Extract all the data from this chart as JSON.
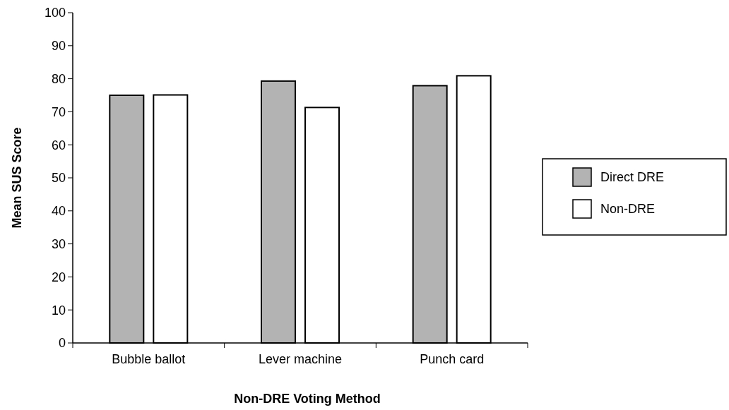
{
  "chart_data": {
    "type": "bar",
    "xlabel": "Non-DRE Voting Method",
    "ylabel": "Mean SUS Score",
    "categories": [
      "Bubble ballot",
      "Lever machine",
      "Punch card"
    ],
    "series": [
      {
        "name": "Direct DRE",
        "color": "#b3b3b3",
        "values": [
          75.0,
          79.3,
          77.9
        ]
      },
      {
        "name": "Non-DRE",
        "color": "#ffffff",
        "values": [
          75.1,
          71.3,
          80.9
        ]
      }
    ],
    "ylim": [
      0,
      100
    ],
    "yticks": [
      0,
      10,
      20,
      30,
      40,
      50,
      60,
      70,
      80,
      90,
      100
    ],
    "legend": "right",
    "grid": false
  }
}
